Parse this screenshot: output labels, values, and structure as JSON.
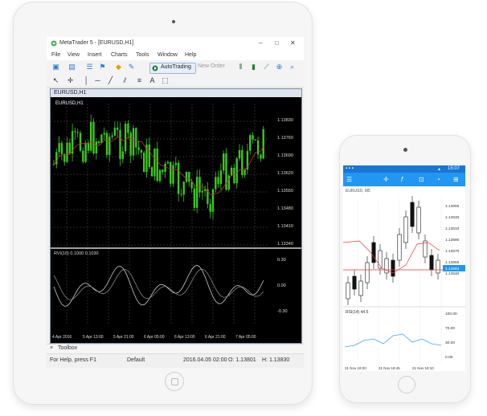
{
  "tablet": {
    "window_title": "MetaTrader 5 - [EURUSD,H1]",
    "window_buttons": [
      "–",
      "□",
      "✕"
    ],
    "menu": [
      "File",
      "View",
      "Insert",
      "Charts",
      "Tools",
      "Window",
      "Help"
    ],
    "autotrading_label": "AutoTrading",
    "new_order_label": "New Order",
    "chart_tab_title": "EURUSD,H1",
    "chart_symbol": "EURUSD,H1",
    "oscillator_label": "RVI(10) 0.1000 0.1030",
    "price_labels": [
      "1.13830",
      "1.13760",
      "1.13690",
      "1.13620",
      "1.13550",
      "1.13480",
      "1.13410",
      "1.13340"
    ],
    "osc_labels": [
      "0.30",
      "0.00",
      "-0.30"
    ],
    "time_labels": [
      "4 Apr 2016",
      "5 Apr 13:00",
      "5 Apr 21:00",
      "6 Apr 05:00",
      "6 Apr 13:00",
      "6 Apr 21:00",
      "7 Apr 05:00"
    ],
    "toolbox_label": "Toolbox",
    "status": {
      "help": "For Help, press F1",
      "profile": "Default",
      "datetime": "2016.04.05 02:00",
      "open": "O: 1.13801",
      "high": "H: 1.13830"
    }
  },
  "phone": {
    "status_time": "15:07",
    "chart_title": "EURUSD, M5",
    "price_labels": [
      "1.13650",
      "1.13630",
      "1.13610",
      "1.13590",
      "1.13570",
      "1.13550",
      "1.13530"
    ],
    "current_price": "1.13563",
    "indicator_label": "RSI(14) 44.5",
    "indicator_levels": [
      "100.00",
      "70.00",
      "30.00",
      "0.00"
    ],
    "time_labels": [
      "21 Nov 18:20",
      "21 Nov 18:45",
      "21 Nov 19:10"
    ]
  },
  "colors": {
    "candle_up": "#3cc81e",
    "chart_bg": "#000000",
    "ma_line": "#c0392b",
    "app_blue": "#2196f3",
    "phone_red_line": "#e53935"
  }
}
